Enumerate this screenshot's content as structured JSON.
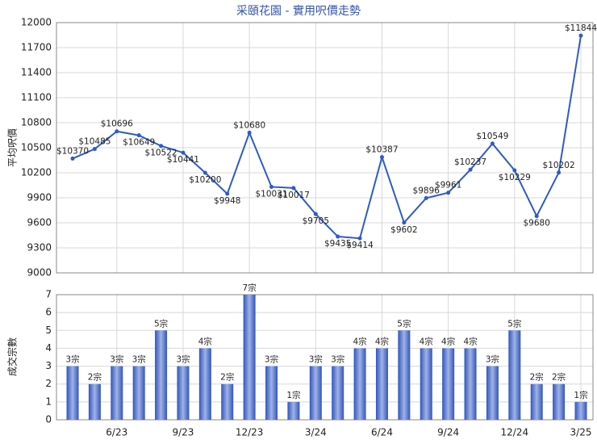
{
  "chart_data": [
    {
      "type": "line",
      "title": "采頤花園 - 實用呎價走勢",
      "ylabel": "平均呎價",
      "color": "#2d5bc8",
      "values": [
        10370,
        10485,
        10696,
        10649,
        10522,
        10441,
        10200,
        9948,
        10680,
        10031,
        10017,
        9705,
        9435,
        9414,
        10387,
        9602,
        9896,
        9961,
        10237,
        10549,
        10229,
        9680,
        10202,
        11844
      ],
      "value_labels": [
        "$10370",
        "$10485",
        "$10696",
        "$10649",
        "$10522",
        "$10441",
        "$10200",
        "$9948",
        "$10680",
        "$10031",
        "$10017",
        "$9705",
        "$9435",
        "$9414",
        "$10387",
        "$9602",
        "$9896",
        "$9961",
        "$10237",
        "$10549",
        "$10229",
        "$9680",
        "$10202",
        "$11844"
      ],
      "ylim": [
        9000,
        12000
      ],
      "yticks": [
        9000,
        9300,
        9600,
        9900,
        10200,
        10500,
        10800,
        11100,
        11400,
        11700,
        12000
      ],
      "grid": true
    },
    {
      "type": "bar",
      "ylabel": "成交宗數",
      "color": "#2f55c0",
      "categories": [
        null,
        null,
        "6/23",
        null,
        null,
        "9/23",
        null,
        null,
        "12/23",
        null,
        null,
        "3/24",
        null,
        null,
        "6/24",
        null,
        null,
        "9/24",
        null,
        null,
        "12/24",
        null,
        null,
        "3/25"
      ],
      "values": [
        3,
        2,
        3,
        3,
        5,
        3,
        4,
        2,
        7,
        3,
        1,
        3,
        3,
        4,
        4,
        5,
        4,
        4,
        4,
        3,
        5,
        2,
        2,
        1
      ],
      "value_labels": [
        "3宗",
        "2宗",
        "3宗",
        "3宗",
        "5宗",
        "3宗",
        "4宗",
        "2宗",
        "7宗",
        "3宗",
        "1宗",
        "3宗",
        "3宗",
        "4宗",
        "4宗",
        "5宗",
        "4宗",
        "4宗",
        "4宗",
        "3宗",
        "5宗",
        "2宗",
        "2宗",
        "1宗"
      ],
      "ylim": [
        0,
        7
      ],
      "yticks": [
        0,
        1,
        2,
        3,
        4,
        5,
        6,
        7
      ],
      "grid": true
    }
  ]
}
